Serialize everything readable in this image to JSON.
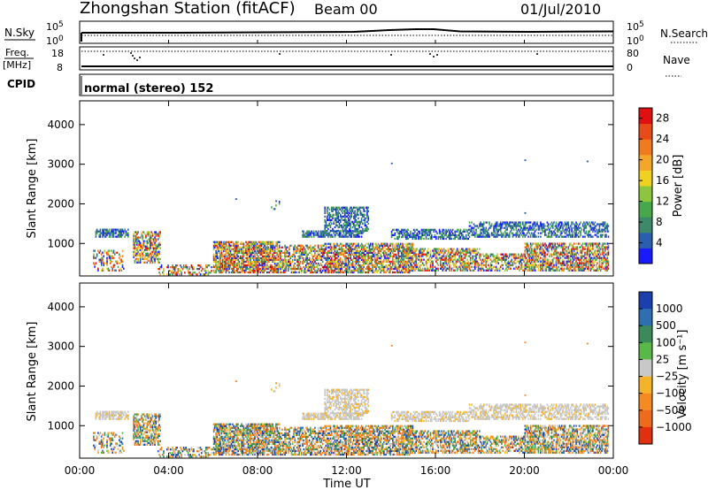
{
  "header": {
    "station": "Zhongshan Station (fitACF)",
    "beam": "Beam 00",
    "date": "01/Jul/2010"
  },
  "strip_labels": {
    "nsky": "N.Sky",
    "nsky_top": "10^5",
    "nsky_bottom": "10^0",
    "nsearch": "N.Search",
    "nsearch_top": "10^5",
    "nsearch_bottom": "10^0",
    "freq_top_line": "Freq.",
    "freq_unit": "[MHz]",
    "freq_hi": "18",
    "freq_lo": "8",
    "nave": "Nave",
    "nave_hi": "80",
    "nave_lo": "0",
    "cpid": "CPID",
    "cpid_value": "normal (stereo) 152"
  },
  "chart_data": [
    {
      "type": "heatmap",
      "title": "",
      "quantity": "Power",
      "ylabel": "Slant Range [km]",
      "xlabel": "",
      "ylim": [
        180,
        4600
      ],
      "xlim": [
        0,
        24
      ],
      "yticks": [
        "1000",
        "2000",
        "3000",
        "4000"
      ],
      "colorbar": {
        "label": "Power [dB]",
        "ticks": [
          "4",
          "8",
          "12",
          "16",
          "20",
          "24",
          "28"
        ],
        "range": [
          0,
          30
        ],
        "colors": [
          "#1a1aff",
          "#2a5fb0",
          "#3d8a6a",
          "#46a84a",
          "#8cc63f",
          "#f0d020",
          "#f4a62a",
          "#f07a1e",
          "#e84a18",
          "#e01010"
        ]
      }
    },
    {
      "type": "heatmap",
      "title": "",
      "quantity": "Velocity",
      "ylabel": "Slant Range [km]",
      "xlabel": "Time UT",
      "ylim": [
        180,
        4600
      ],
      "xlim": [
        0,
        24
      ],
      "yticks": [
        "1000",
        "2000",
        "3000",
        "4000"
      ],
      "xticks": [
        "00:00",
        "04:00",
        "08:00",
        "12:00",
        "16:00",
        "20:00",
        "00:00"
      ],
      "colorbar": {
        "label": "Velocity [m s⁻¹]",
        "ticks": [
          "1000",
          "500",
          "100",
          "25",
          "−25",
          "−100",
          "−500",
          "−1000"
        ],
        "colors": [
          "#1c3fae",
          "#2e6fb2",
          "#3a8a5a",
          "#58b848",
          "#c8c8c8",
          "#f4b42a",
          "#f38a22",
          "#ee6a1c",
          "#e03010"
        ]
      }
    }
  ]
}
